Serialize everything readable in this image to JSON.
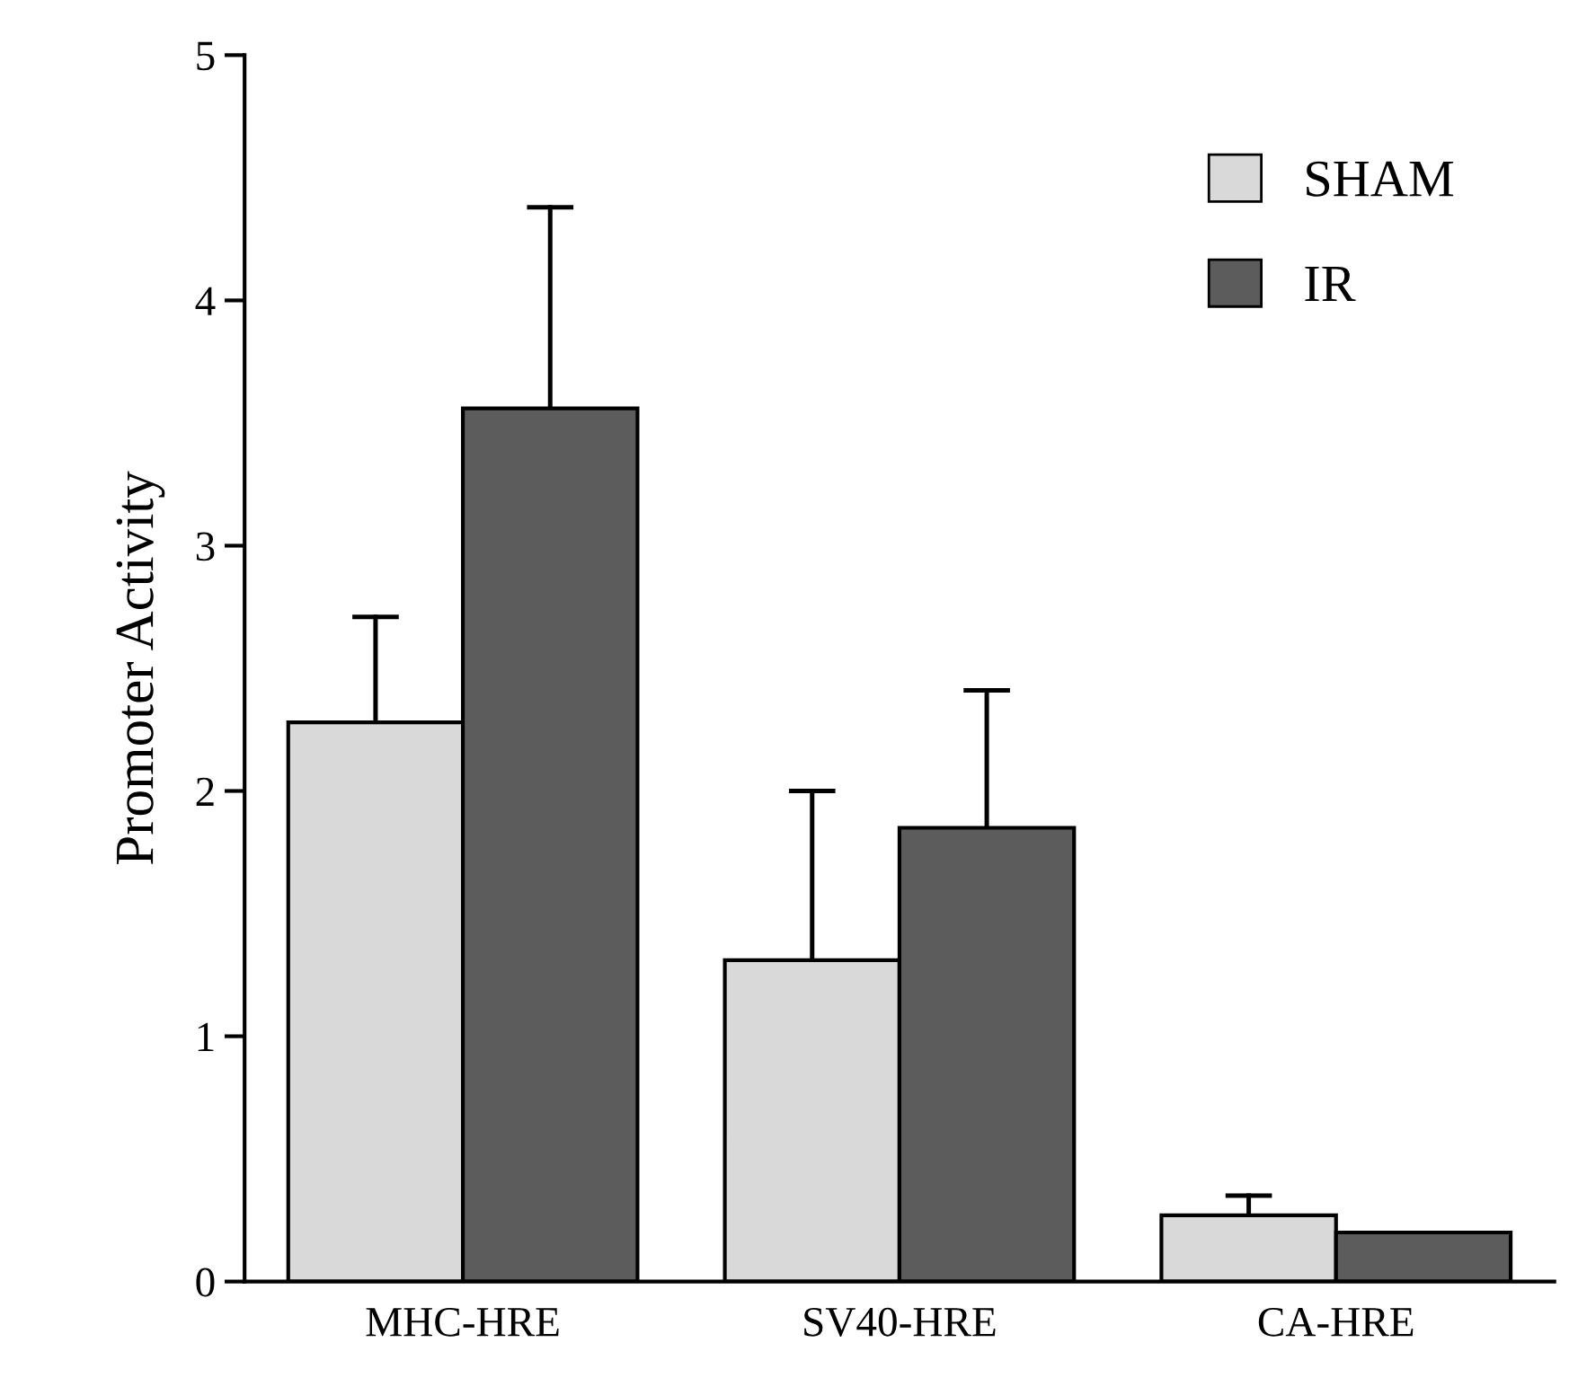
{
  "chart_data": {
    "type": "bar",
    "ylabel": "Promoter Activity",
    "categories": [
      "MHC-HRE",
      "SV40-HRE",
      "CA-HRE"
    ],
    "series": [
      {
        "name": "SHAM",
        "color": "#d9d9d9",
        "values": [
          2.28,
          1.31,
          0.27
        ],
        "errors": [
          0.43,
          0.69,
          0.08
        ]
      },
      {
        "name": "IR",
        "color": "#5c5c5c",
        "values": [
          3.56,
          1.85,
          0.2
        ],
        "errors": [
          0.82,
          0.56,
          null
        ]
      }
    ],
    "ylim": [
      0,
      5
    ],
    "yticks": [
      0,
      1,
      2,
      3,
      4,
      5
    ],
    "grid": false,
    "legend": "top right"
  }
}
